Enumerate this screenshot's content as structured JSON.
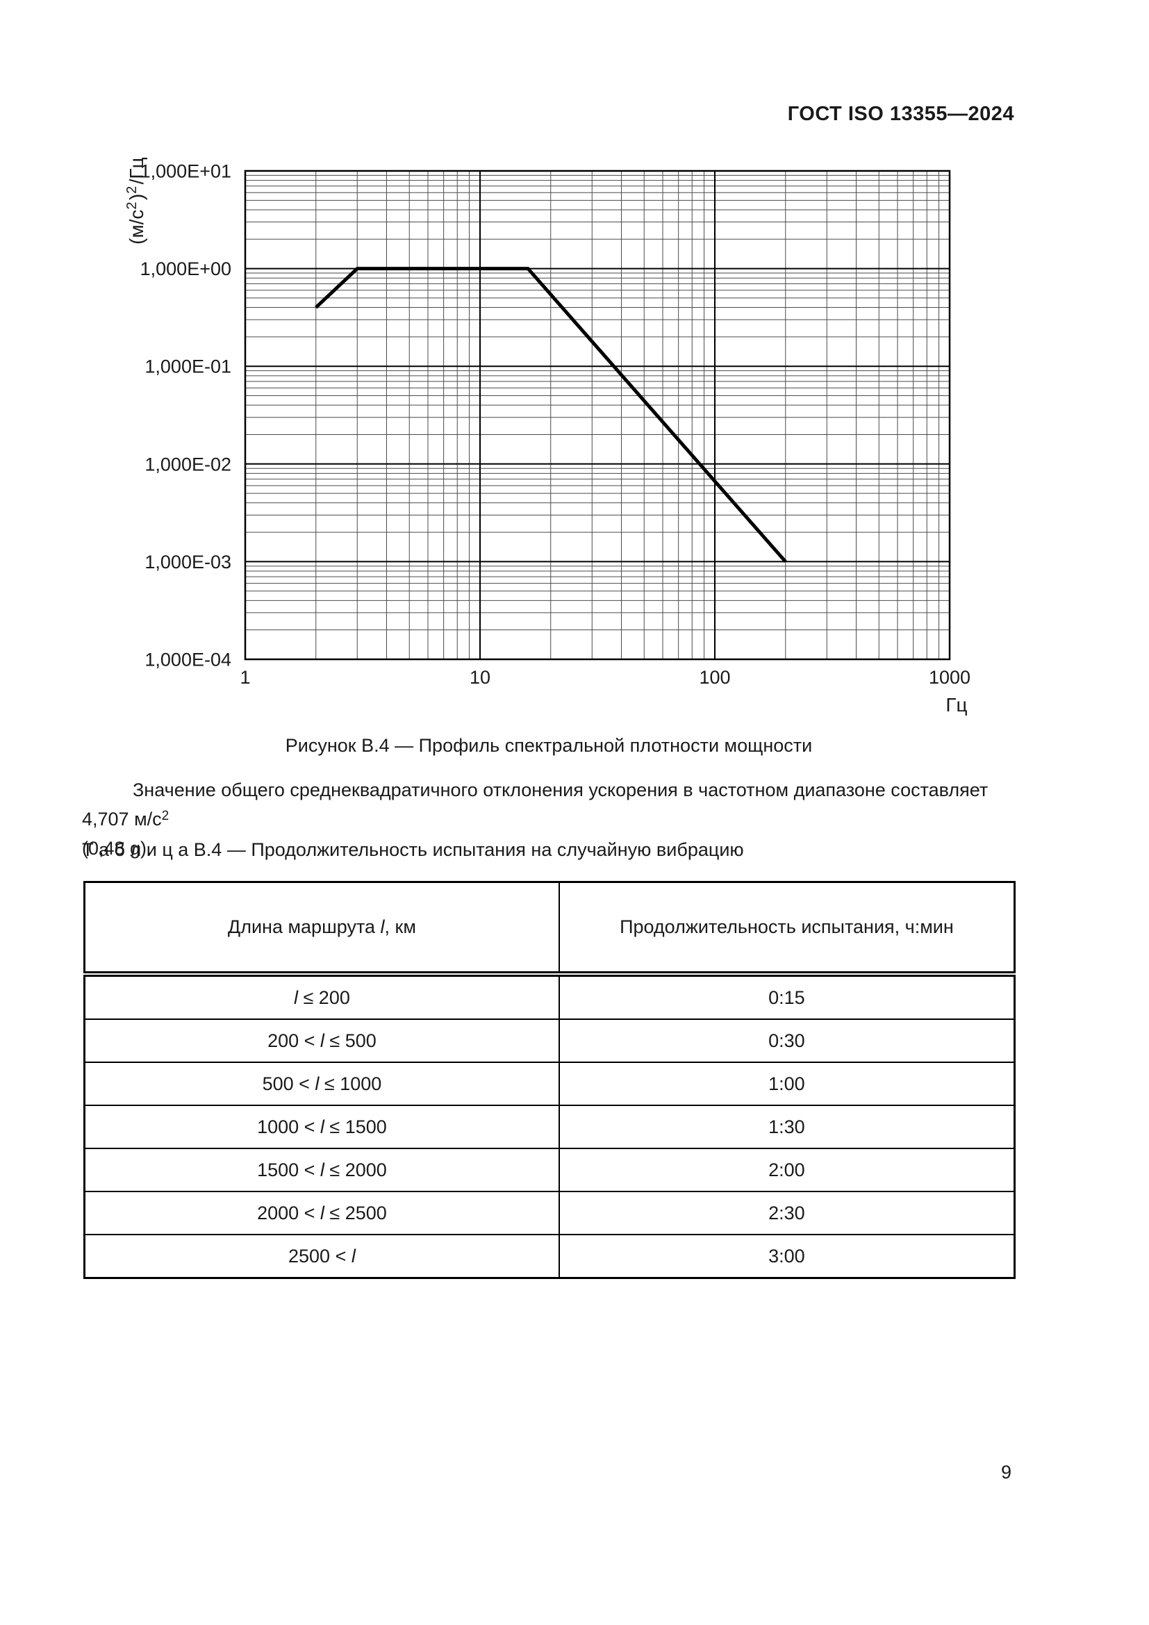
{
  "header": {
    "title": "ГОСТ ISO 13355—2024"
  },
  "figure": {
    "caption": "Рисунок В.4 — Профиль спектральной плотности мощности"
  },
  "chart_data": {
    "type": "line",
    "xscale": "log",
    "yscale": "log",
    "xlim": [
      1,
      1000
    ],
    "ylim": [
      0.0001,
      10
    ],
    "xlabel": "Гц",
    "ylabel": "(м/с2)2/Гц",
    "ylabel_parts": [
      {
        "t": "(м/с"
      },
      {
        "sup": "2"
      },
      {
        "t": ")"
      },
      {
        "sup": "2"
      },
      {
        "t": "/Гц"
      }
    ],
    "series": [
      {
        "name": "Профиль спектральной плотности мощности",
        "points": [
          [
            2,
            0.4
          ],
          [
            3,
            1.0
          ],
          [
            16,
            1.0
          ],
          [
            200,
            0.001
          ]
        ]
      }
    ],
    "x_ticks": [
      1,
      10,
      100,
      1000
    ],
    "x_tick_labels": [
      "1",
      "10",
      "100",
      "1000"
    ],
    "y_ticks": [
      10,
      1,
      0.1,
      0.01,
      0.001,
      0.0001
    ],
    "y_tick_labels": [
      "1,000E+01",
      "1,000E+00",
      "1,000E-01",
      "1,000E-02",
      "1,000E-03",
      "1,000E-04"
    ],
    "grid": {
      "major": true,
      "minor": true
    },
    "legend": "none"
  },
  "note": {
    "line1_parts": [
      {
        "t": "Значение общего среднеквадратичного отклонения ускорения в частотном диапазоне составляет 4,707 м/с"
      },
      {
        "sup": "2"
      }
    ],
    "line2": "(0,48 g)."
  },
  "table": {
    "title": "Т а б л и ц а  В.4 — Продолжительность испытания на случайную вибрацию",
    "columns": [
      "Длина маршрута l, км",
      "Продолжительность испытания, ч:мин"
    ],
    "rows": [
      [
        "l ≤ 200",
        "0:15"
      ],
      [
        "200 < l ≤ 500",
        "0:30"
      ],
      [
        "500 < l ≤ 1000",
        "1:00"
      ],
      [
        "1000 < l ≤ 1500",
        "1:30"
      ],
      [
        "1500 < l ≤ 2000",
        "2:00"
      ],
      [
        "2000 < l ≤ 2500",
        "2:30"
      ],
      [
        "2500 < l",
        "3:00"
      ]
    ]
  },
  "page": {
    "number": "9"
  }
}
